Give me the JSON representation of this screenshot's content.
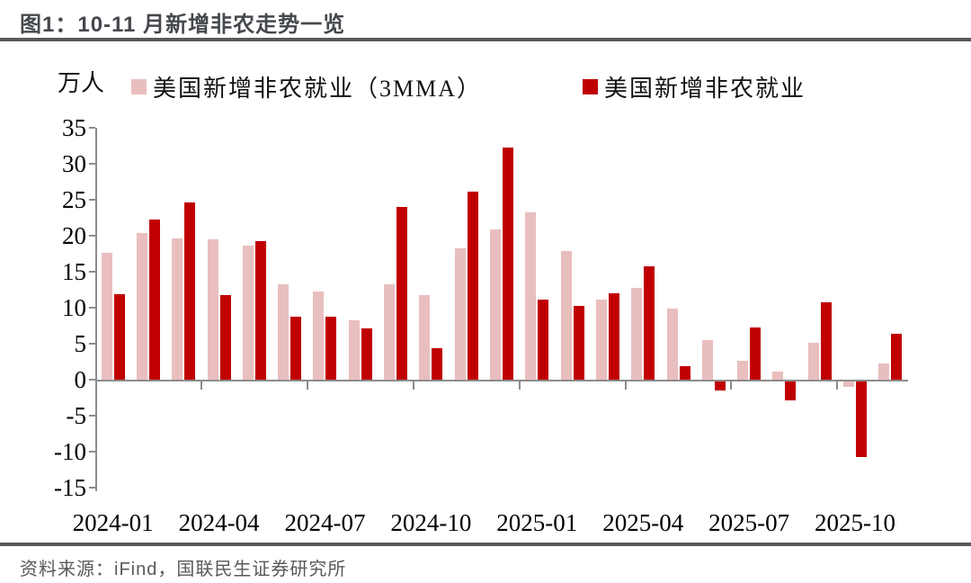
{
  "figure": {
    "title": "图1：10-11 月新增非农走势一览",
    "source": "资料来源：iFind，国联民生证券研究所"
  },
  "chart_data": {
    "type": "bar",
    "title": "图1：10-11 月新增非农走势一览",
    "unit_label": "万人",
    "grid": false,
    "legend_position": "top",
    "ylim": [
      -15,
      35
    ],
    "ytick_step": 5,
    "yticks": [
      35,
      30,
      25,
      20,
      15,
      10,
      5,
      0,
      -5,
      -10,
      -15
    ],
    "categories": [
      "2024-01",
      "2024-02",
      "2024-03",
      "2024-04",
      "2024-05",
      "2024-06",
      "2024-07",
      "2024-08",
      "2024-09",
      "2024-10",
      "2024-11",
      "2024-12",
      "2025-01",
      "2025-02",
      "2025-03",
      "2025-04",
      "2025-05",
      "2025-06",
      "2025-07",
      "2025-08",
      "2025-09",
      "2025-10",
      "2025-11"
    ],
    "xtick_labels": [
      "2024-01",
      "2024-04",
      "2024-07",
      "2024-10",
      "2025-01",
      "2025-04",
      "2025-07",
      "2025-10"
    ],
    "xtick_month_interval": 3,
    "series": [
      {
        "name": "美国新增非农就业（3MMA）",
        "color": "#E9BEBE",
        "values": [
          17.6,
          20.4,
          19.6,
          19.5,
          18.6,
          13.3,
          12.3,
          8.2,
          13.3,
          11.8,
          18.2,
          20.9,
          23.2,
          17.9,
          11.1,
          12.7,
          9.9,
          5.5,
          2.6,
          1.1,
          5.1,
          -0.8,
          2.2
        ]
      },
      {
        "name": "美国新增非农就业",
        "color": "#C00000",
        "values": [
          11.9,
          22.2,
          24.6,
          11.8,
          19.3,
          8.7,
          8.8,
          7.1,
          24.0,
          4.4,
          26.1,
          32.3,
          11.1,
          10.2,
          12.0,
          15.8,
          1.9,
          -1.3,
          7.2,
          -2.6,
          10.8,
          -10.5,
          6.4
        ]
      }
    ]
  },
  "colors": {
    "rule": "#595959",
    "axis": "#8c8c8c",
    "title_text": "#45484d",
    "footer_text": "#595959"
  }
}
